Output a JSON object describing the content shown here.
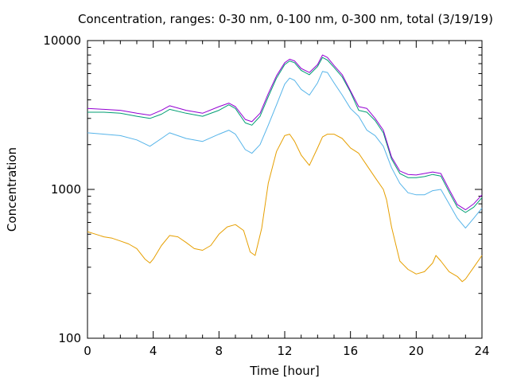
{
  "chart_data": {
    "type": "line",
    "title": "Concentration, ranges: 0-30 nm, 0-100 nm, 0-300 nm, total (3/19/19)",
    "xlabel": "Time [hour]",
    "ylabel": "Concentration",
    "xlim": [
      0,
      24
    ],
    "ylim": [
      100,
      10000
    ],
    "yscale": "log",
    "x_ticks": [
      0,
      4,
      8,
      12,
      16,
      20,
      24
    ],
    "x_tick_labels": [
      "0",
      "4",
      "8",
      "12",
      "16",
      "20",
      "24"
    ],
    "y_ticks": [
      100,
      1000,
      10000
    ],
    "y_tick_labels": [
      "100",
      "1000",
      "10000"
    ],
    "legend": "none",
    "grid": false,
    "series": [
      {
        "color": "#e69f00",
        "x": [
          0,
          0.5,
          1,
          1.5,
          2,
          2.5,
          3,
          3.5,
          3.8,
          4,
          4.5,
          5,
          5.5,
          6,
          6.5,
          7,
          7.5,
          8,
          8.5,
          9,
          9.5,
          9.9,
          10.2,
          10.6,
          11,
          11.5,
          12,
          12.3,
          12.6,
          13,
          13.5,
          14,
          14.3,
          14.6,
          15,
          15.5,
          16,
          16.5,
          17,
          17.5,
          18,
          18.2,
          18.5,
          19,
          19.5,
          20,
          20.5,
          21,
          21.2,
          21.5,
          22,
          22.5,
          22.8,
          23,
          23.5,
          24
        ],
        "y": [
          520,
          500,
          480,
          470,
          450,
          430,
          400,
          340,
          320,
          340,
          420,
          490,
          480,
          440,
          400,
          390,
          420,
          500,
          560,
          580,
          530,
          380,
          360,
          550,
          1100,
          1800,
          2300,
          2350,
          2100,
          1700,
          1450,
          1900,
          2250,
          2350,
          2350,
          2200,
          1900,
          1750,
          1450,
          1200,
          1000,
          850,
          560,
          330,
          290,
          270,
          280,
          320,
          360,
          330,
          280,
          260,
          240,
          250,
          300,
          360
        ]
      },
      {
        "color": "#56b4e9",
        "x": [
          0,
          1,
          2,
          3,
          3.8,
          4.5,
          5,
          6,
          7,
          8,
          8.6,
          9,
          9.6,
          10,
          10.5,
          11,
          11.5,
          12,
          12.3,
          12.6,
          13,
          13.5,
          14,
          14.3,
          14.6,
          15,
          15.5,
          16,
          16.5,
          17,
          17.5,
          18,
          18.5,
          19,
          19.5,
          20,
          20.5,
          21,
          21.5,
          22,
          22.5,
          23,
          23.5,
          24
        ],
        "y": [
          2400,
          2350,
          2300,
          2150,
          1950,
          2200,
          2400,
          2200,
          2100,
          2350,
          2500,
          2350,
          1850,
          1750,
          2000,
          2700,
          3700,
          5100,
          5600,
          5400,
          4700,
          4300,
          5200,
          6200,
          6100,
          5200,
          4300,
          3500,
          3100,
          2500,
          2300,
          1950,
          1400,
          1100,
          950,
          920,
          920,
          980,
          1000,
          800,
          640,
          550,
          640,
          750
        ]
      },
      {
        "color": "#009e73",
        "x": [
          0,
          1,
          2,
          3,
          3.8,
          4.5,
          5,
          6,
          7,
          8,
          8.6,
          9,
          9.6,
          10,
          10.5,
          11,
          11.5,
          12,
          12.3,
          12.6,
          13,
          13.5,
          14,
          14.3,
          14.6,
          15,
          15.5,
          16,
          16.5,
          17,
          17.5,
          18,
          18.5,
          19,
          19.5,
          20,
          20.5,
          21,
          21.5,
          22,
          22.5,
          23,
          23.5,
          24
        ],
        "y": [
          3300,
          3300,
          3250,
          3100,
          3000,
          3200,
          3450,
          3250,
          3100,
          3400,
          3700,
          3500,
          2800,
          2700,
          3100,
          4200,
          5600,
          6900,
          7300,
          7100,
          6300,
          5900,
          6700,
          7700,
          7400,
          6600,
          5700,
          4500,
          3400,
          3300,
          2900,
          2400,
          1600,
          1280,
          1200,
          1200,
          1220,
          1260,
          1230,
          960,
          760,
          700,
          760,
          880
        ]
      },
      {
        "color": "#9400d3",
        "x": [
          0,
          1,
          2,
          3,
          3.8,
          4.5,
          5,
          6,
          7,
          8,
          8.6,
          9,
          9.6,
          10,
          10.5,
          11,
          11.5,
          12,
          12.3,
          12.6,
          13,
          13.5,
          14,
          14.3,
          14.6,
          15,
          15.5,
          16,
          16.5,
          17,
          17.5,
          18,
          18.5,
          19,
          19.5,
          20,
          20.5,
          21,
          21.5,
          22,
          22.5,
          23,
          23.5,
          24
        ],
        "y": [
          3500,
          3450,
          3400,
          3250,
          3150,
          3400,
          3650,
          3400,
          3250,
          3600,
          3800,
          3600,
          2950,
          2850,
          3250,
          4400,
          5800,
          7100,
          7500,
          7300,
          6500,
          6100,
          6900,
          8000,
          7700,
          6800,
          5900,
          4600,
          3600,
          3500,
          3000,
          2500,
          1650,
          1330,
          1260,
          1250,
          1280,
          1310,
          1280,
          1000,
          790,
          730,
          800,
          920
        ]
      }
    ]
  }
}
